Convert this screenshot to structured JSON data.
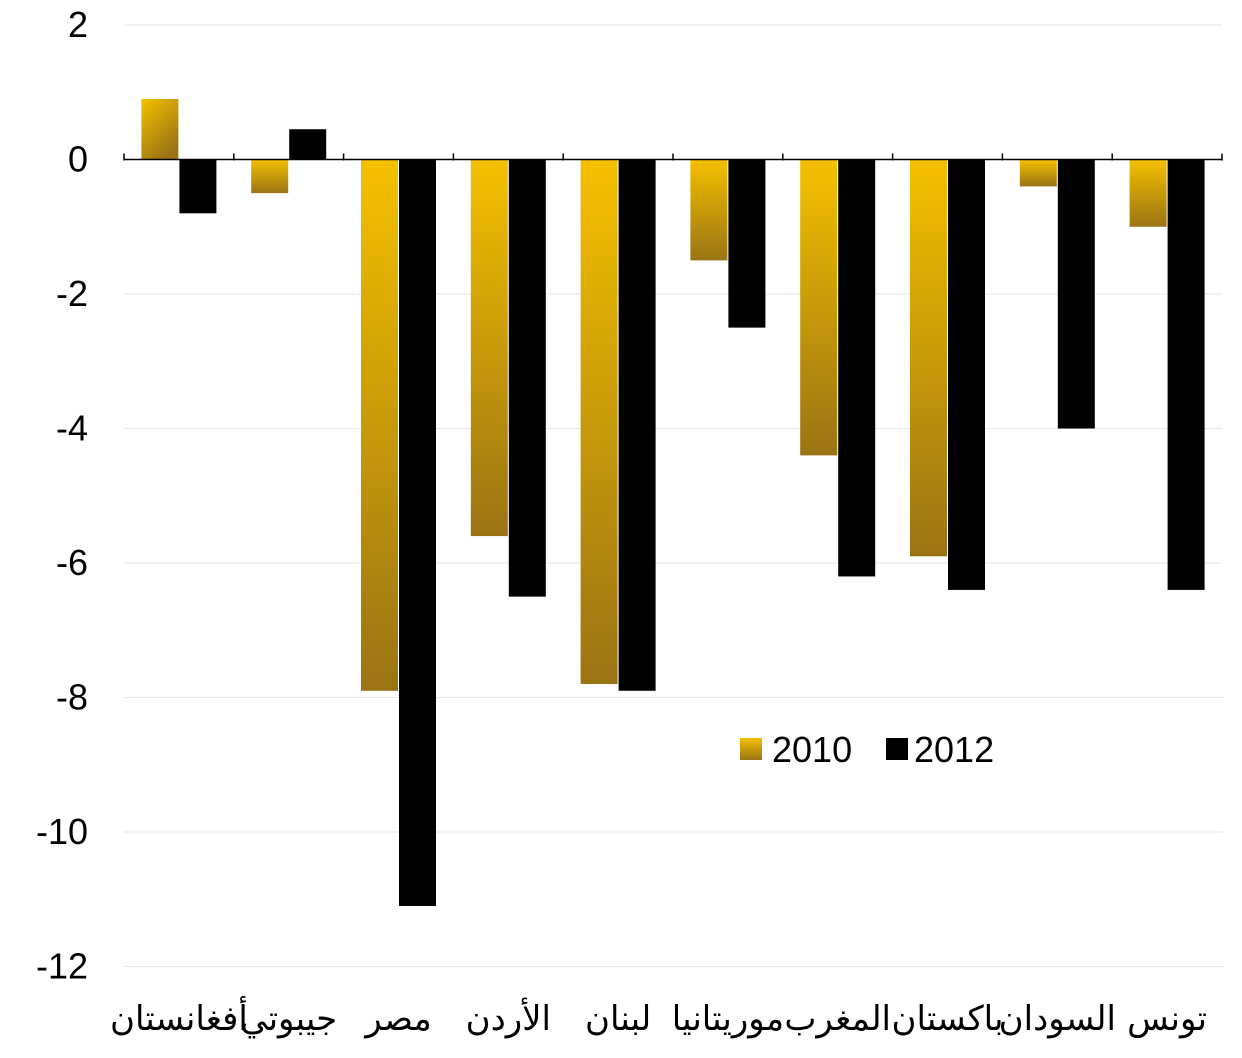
{
  "chart_data": {
    "type": "bar",
    "title": "",
    "xlabel": "",
    "ylabel": "",
    "ylim": [
      -12,
      2
    ],
    "yticks": [
      2,
      0,
      -2,
      -4,
      -6,
      -8,
      -10,
      -12
    ],
    "grid": true,
    "legend_position": "center-right",
    "categories": [
      "أفغانستان",
      "جيبوتي",
      "مصر",
      "الأردن",
      "لبنان",
      "موريتانيا",
      "المغرب",
      "باكستان",
      "السودان",
      "تونس"
    ],
    "series": [
      {
        "name": "2010",
        "color": "#f5c000",
        "color_dark": "#9a7414",
        "values": [
          0.9,
          -0.5,
          -7.9,
          -5.6,
          -7.8,
          -1.5,
          -4.4,
          -5.9,
          -0.4,
          -1.0
        ]
      },
      {
        "name": "2012",
        "color": "#000000",
        "values": [
          -0.8,
          0.45,
          -11.1,
          -6.5,
          -7.9,
          -2.5,
          -6.2,
          -6.4,
          -4.0,
          -6.4
        ]
      }
    ]
  }
}
